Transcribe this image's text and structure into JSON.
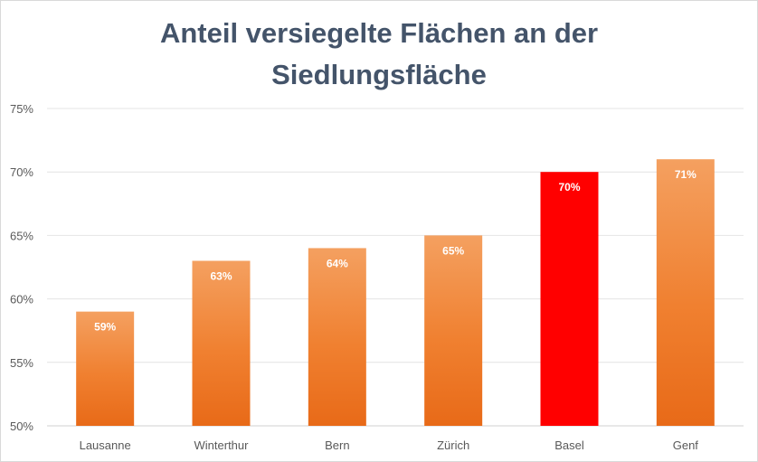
{
  "chart_data": {
    "type": "bar",
    "title_lines": [
      "Anteil versiegelte Flächen an der",
      "Siedlungsfläche"
    ],
    "categories": [
      "Lausanne",
      "Winterthur",
      "Bern",
      "Zürich",
      "Basel",
      "Genf"
    ],
    "values": [
      59,
      63,
      64,
      65,
      70,
      71
    ],
    "data_labels": [
      "59%",
      "63%",
      "64%",
      "65%",
      "70%",
      "71%"
    ],
    "ylim": [
      50,
      75
    ],
    "yticks": [
      50,
      55,
      60,
      65,
      70,
      75
    ],
    "ytick_labels": [
      "50%",
      "55%",
      "60%",
      "65%",
      "70%",
      "75%"
    ],
    "grid": true,
    "legend": "none",
    "colors": {
      "bar_default_top": "#f4a060",
      "bar_default_mid": "#f08030",
      "bar_default_bottom": "#e86a18",
      "bar_highlight": "#ff0000",
      "title": "#44546a",
      "grid": "#e4e4e4"
    },
    "highlight_category": "Basel"
  }
}
